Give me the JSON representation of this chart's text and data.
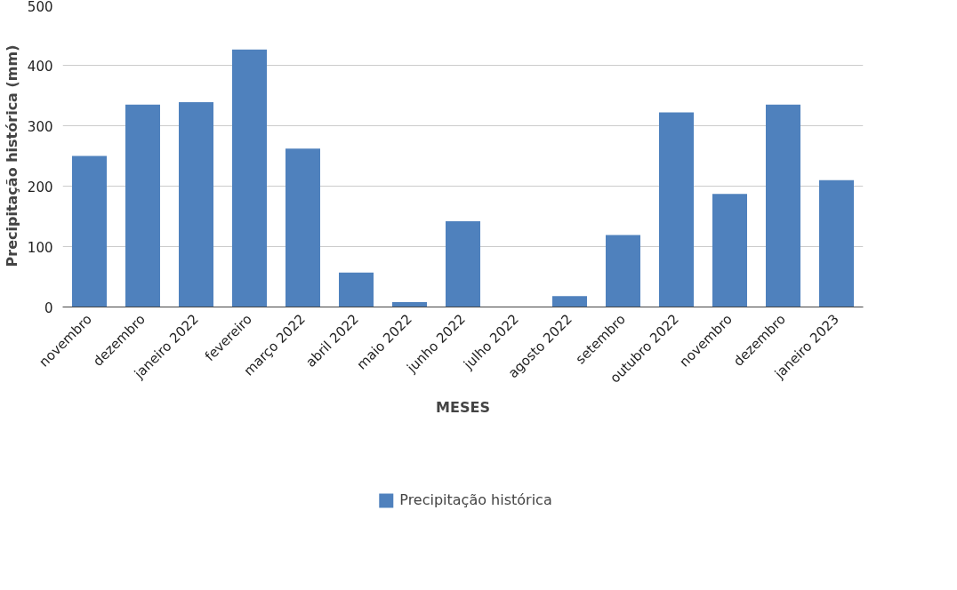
{
  "chart_data": {
    "type": "bar",
    "xlabel": "MESES",
    "ylabel": "Precipitação histórica (mm)",
    "categories": [
      "novembro",
      "dezembro",
      "janeiro 2022",
      "fevereiro",
      "março 2022",
      "abril 2022",
      "maio 2022",
      "junho 2022",
      "julho 2022",
      "agosto 2022",
      "setembro",
      "outubro 2022",
      "novembro",
      "dezembro",
      "janeiro 2023"
    ],
    "series": [
      {
        "name": "Precipitação histórica",
        "color": "#4f81bd",
        "values": [
          250,
          335,
          339,
          426,
          262,
          57,
          8,
          142,
          0,
          18,
          119,
          322,
          187,
          335,
          210
        ]
      }
    ],
    "ylim": [
      0,
      500
    ],
    "yticks": [
      0,
      100,
      200,
      300,
      400,
      500
    ],
    "grid": "y",
    "legend": "bottom"
  }
}
